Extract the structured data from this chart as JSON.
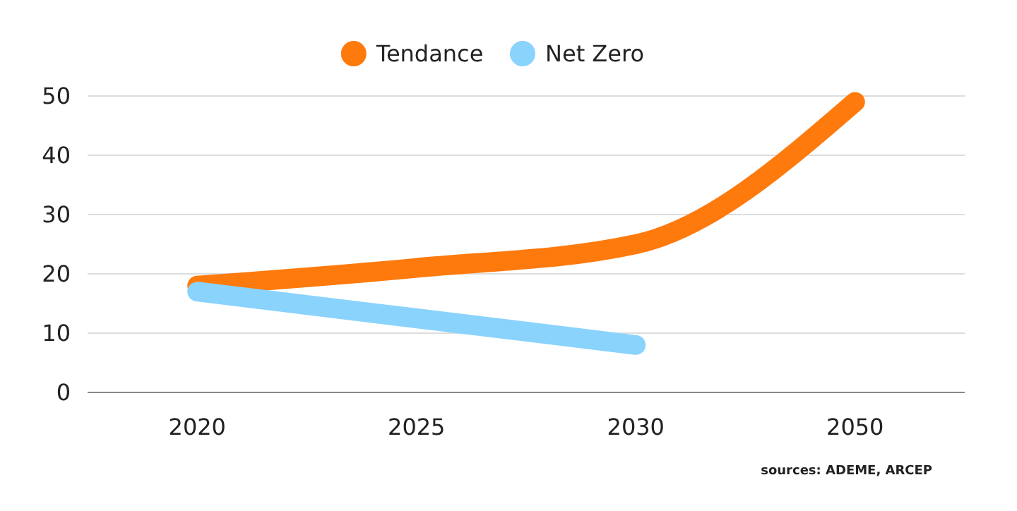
{
  "chart_data": {
    "type": "line",
    "categories": [
      "2020",
      "2025",
      "2030",
      "2050"
    ],
    "series": [
      {
        "name": "Tendance",
        "color": "#ff7a0d",
        "values": [
          18,
          21,
          25,
          49
        ]
      },
      {
        "name": "Net Zero",
        "color": "#89d3fd",
        "values": [
          17,
          12.5,
          8,
          null
        ]
      }
    ],
    "ylim": [
      0,
      50
    ],
    "yticks": [
      0,
      10,
      20,
      30,
      40,
      50
    ],
    "grid": "y",
    "legend": "top",
    "marker": "none",
    "line_style": "solid",
    "annotations": [
      "sources: ADEME, ARCEP"
    ]
  }
}
